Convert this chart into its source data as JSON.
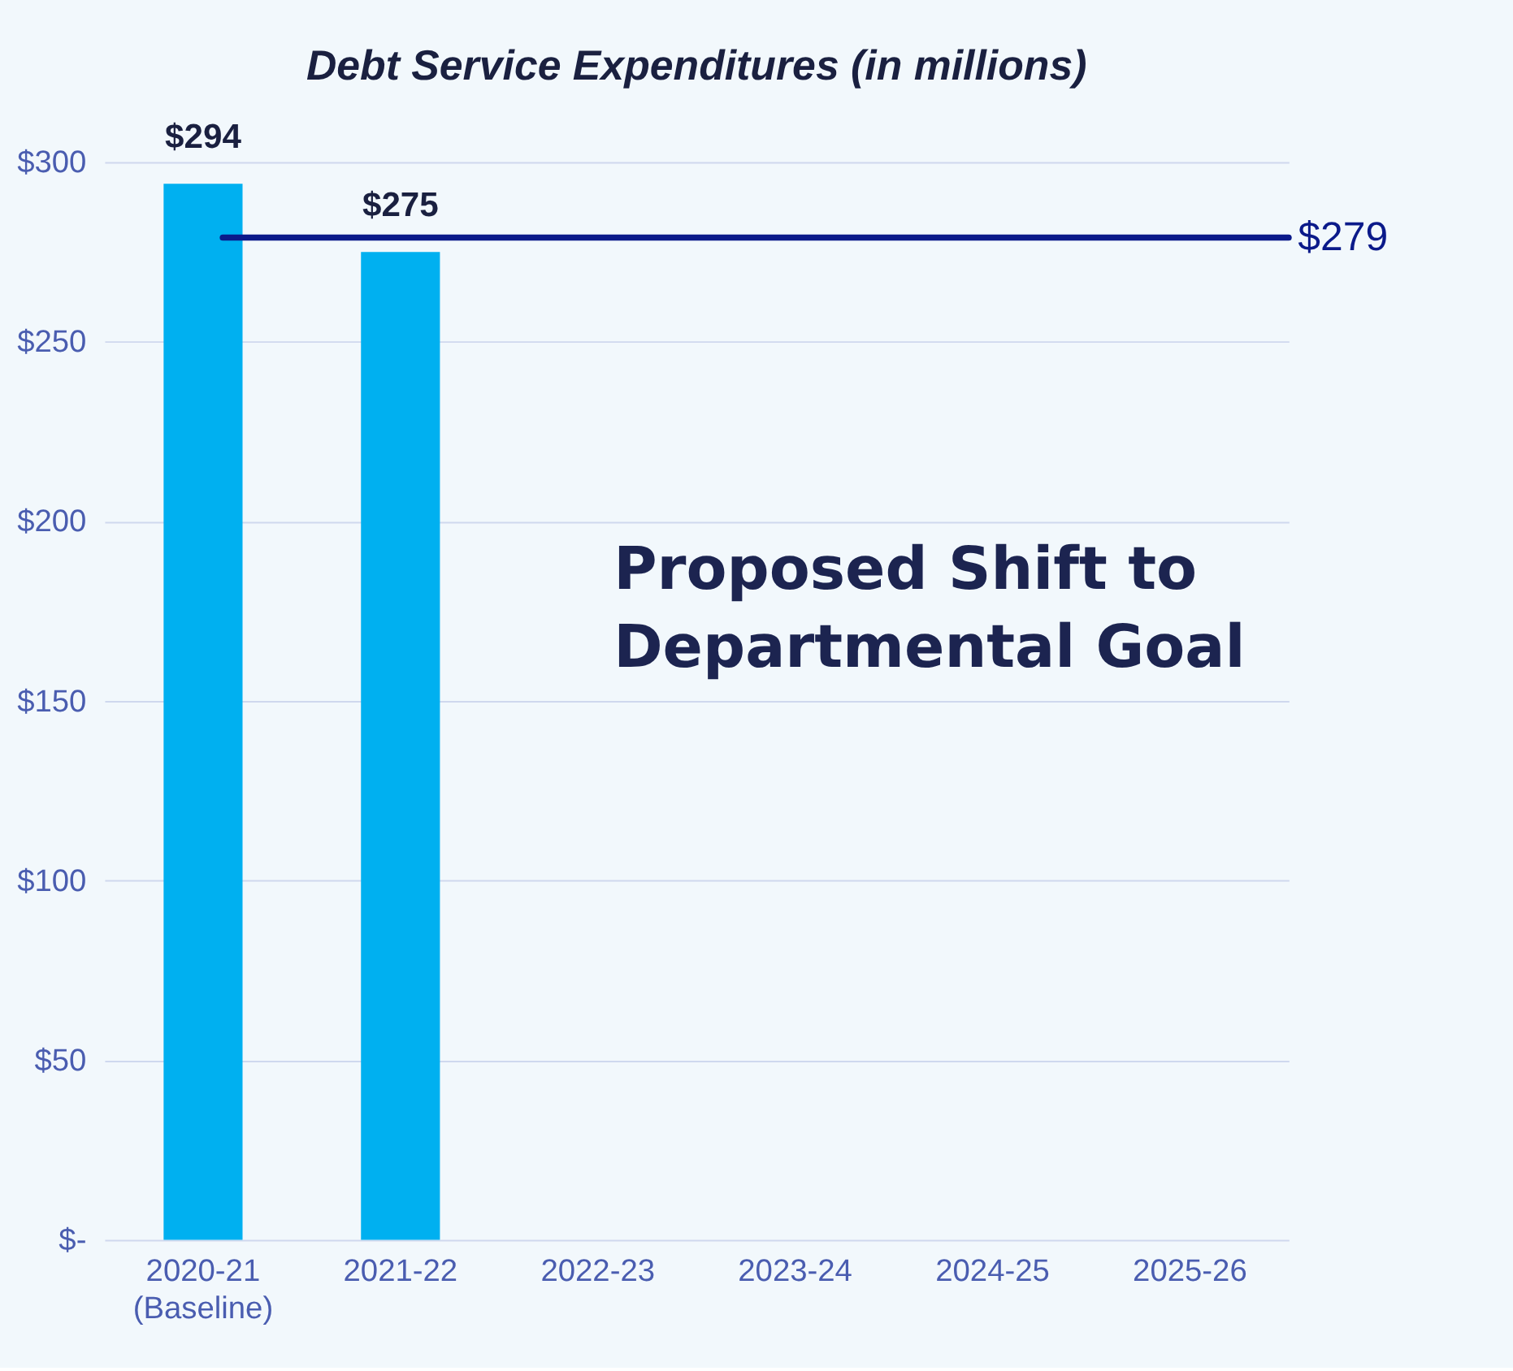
{
  "chart_data": {
    "type": "bar",
    "title": "Debt Service Expenditures (in millions)",
    "categories": [
      "2020-21\n(Baseline)",
      "2021-22",
      "2022-23",
      "2023-24",
      "2024-25",
      "2025-26"
    ],
    "values": [
      294,
      275,
      null,
      null,
      null,
      null
    ],
    "value_labels": [
      "$294",
      "$275",
      null,
      null,
      null,
      null
    ],
    "color": "#00b0f0",
    "ylim": [
      0,
      300
    ],
    "yticks": [
      {
        "value": 0,
        "label": "$-"
      },
      {
        "value": 50,
        "label": "$50"
      },
      {
        "value": 100,
        "label": "$100"
      },
      {
        "value": 150,
        "label": "$150"
      },
      {
        "value": 200,
        "label": "$200"
      },
      {
        "value": 250,
        "label": "$250"
      },
      {
        "value": 300,
        "label": "$300"
      }
    ],
    "grid": "y",
    "ref_lines": [
      {
        "axis": "y",
        "value": 279,
        "label": "$279",
        "color": "#0b1a8a",
        "line_style": "solid"
      }
    ],
    "annotations": [
      "Proposed Shift to\nDepartmental Goal"
    ]
  }
}
